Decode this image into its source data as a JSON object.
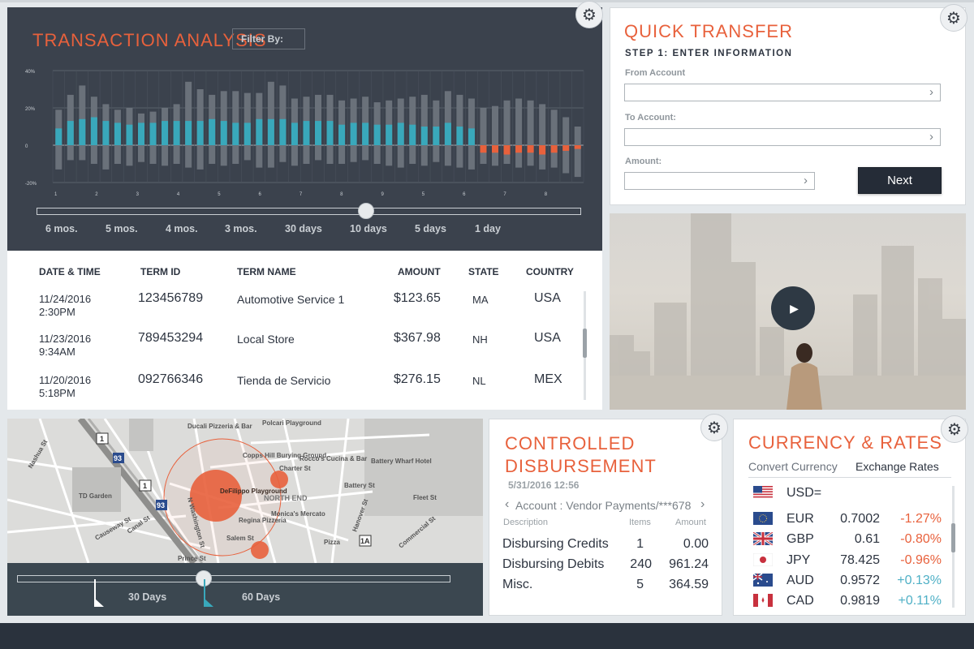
{
  "colors": {
    "accent": "#e8613c",
    "teal": "#39a8bb",
    "dark": "#3b424d",
    "negative": "#e8613c",
    "positive": "#4fb0c6"
  },
  "transaction_analysis": {
    "title": "TRANSACTION ANALYSIS",
    "filter_label": "Filter By:",
    "y_ticks": [
      "40%",
      "20%",
      "0",
      "-20%"
    ],
    "x_ticks": [
      "1",
      "2",
      "3",
      "4",
      "5",
      "6",
      "7",
      "8",
      "9",
      "5",
      "6",
      "7",
      "8"
    ],
    "range_labels": [
      "6 mos.",
      "5 mos.",
      "4 mos.",
      "3 mos.",
      "30 days",
      "10 days",
      "5 days",
      "1 day"
    ],
    "slider_position": 0.61,
    "chart_data": {
      "type": "bar",
      "ylim": [
        -20,
        40
      ],
      "values": [
        9,
        13,
        14,
        15,
        13,
        12,
        11,
        12,
        12,
        13,
        13,
        13,
        13,
        14,
        13,
        12,
        12,
        14,
        14,
        14,
        12,
        13,
        13,
        13,
        11,
        12,
        12,
        11,
        11,
        12,
        11,
        10,
        10,
        12,
        10,
        9,
        -4,
        -4,
        -5,
        -4,
        -4,
        -5,
        -4,
        -3,
        -2
      ],
      "ranges_high": [
        19,
        27,
        32,
        26,
        22,
        19,
        20,
        17,
        18,
        20,
        22,
        34,
        30,
        27,
        29,
        29,
        28,
        28,
        34,
        32,
        25,
        26,
        27,
        27,
        24,
        25,
        26,
        23,
        24,
        25,
        26,
        27,
        24,
        29,
        27,
        25,
        20,
        21,
        24,
        25,
        24,
        22,
        19,
        15,
        10
      ],
      "ranges_low": [
        -13,
        -8,
        -8,
        -10,
        -13,
        -10,
        -11,
        -9,
        -10,
        -11,
        -10,
        -12,
        -13,
        -10,
        -11,
        -10,
        -8,
        -12,
        -12,
        -9,
        -11,
        -10,
        -8,
        -10,
        -10,
        -9,
        -8,
        -10,
        -11,
        -12,
        -10,
        -11,
        -9,
        -11,
        -12,
        -13,
        -10,
        -11,
        -10,
        -12,
        -11,
        -13,
        -12,
        -15,
        -17
      ]
    }
  },
  "transactions": {
    "headers": [
      "DATE & TIME",
      "TERM ID",
      "TERM NAME",
      "AMOUNT",
      "STATE",
      "COUNTRY"
    ],
    "rows": [
      {
        "date": "11/24/2016",
        "time": "2:30PM",
        "term_id": "123456789",
        "term_name": "Automotive Service 1",
        "amount": "$123.65",
        "state": "MA",
        "country": "USA"
      },
      {
        "date": "11/23/2016",
        "time": "9:34AM",
        "term_id": "789453294",
        "term_name": "Local Store",
        "amount": "$367.98",
        "state": "NH",
        "country": "USA"
      },
      {
        "date": "11/20/2016",
        "time": "5:18PM",
        "term_id": "092766346",
        "term_name": "Tienda de Servicio",
        "amount": "$276.15",
        "state": "NL",
        "country": "MEX"
      }
    ]
  },
  "quick_transfer": {
    "title": "QUICK TRANSFER",
    "step": "STEP 1: ENTER INFORMATION",
    "from_label": "From Account",
    "to_label": "To Account:",
    "amount_label": "Amount:",
    "next_label": "Next"
  },
  "map": {
    "labels": [
      "TD Garden",
      "Ducali Pizzeria & Bar",
      "Copps Hill Burying Ground",
      "NORTH END",
      "Regina Pizzeria",
      "Monica's Mercato",
      "Rocco's Cucina & Bar",
      "Battery Wharf Hotel",
      "DeFilippo Playground",
      "Nashua St",
      "Causeway St",
      "Canal St",
      "Hanover St",
      "Commercial St",
      "Battery St",
      "Charter St",
      "Salem St",
      "Prince St",
      "N Washington St",
      "Pizza",
      "Fleet St",
      "Polcari Playground"
    ],
    "route_labels": [
      "1",
      "93",
      "1",
      "93",
      "1A"
    ],
    "slider_position": 0.42,
    "range_labels": [
      "30 Days",
      "60 Days"
    ]
  },
  "disbursement": {
    "title_line1": "CONTROLLED",
    "title_line2": "DISBURSEMENT",
    "date": "5/31/2016  12:56",
    "account": "Account : Vendor Payments/***678",
    "headers": {
      "description": "Description",
      "items": "Items",
      "amount": "Amount"
    },
    "rows": [
      {
        "description": "Disbursing Credits",
        "items": "1",
        "amount": "0.00"
      },
      {
        "description": "Disbursing Debits",
        "items": "240",
        "amount": "961.24"
      },
      {
        "description": "Misc.",
        "items": "5",
        "amount": "364.59"
      }
    ]
  },
  "currency": {
    "title": "CURRENCY & RATES",
    "tabs": [
      "Convert Currency",
      "Exchange Rates"
    ],
    "active_tab": "Exchange Rates",
    "base": "USD=",
    "rows": [
      {
        "code": "EUR",
        "rate": "0.7002",
        "change": "-1.27%",
        "dir": "neg",
        "flag": "eu-flag-icon"
      },
      {
        "code": "GBP",
        "rate": "0.61",
        "change": "-0.80%",
        "dir": "neg",
        "flag": "uk-flag-icon"
      },
      {
        "code": "JPY",
        "rate": "78.425",
        "change": "-0.96%",
        "dir": "neg",
        "flag": "japan-flag-icon"
      },
      {
        "code": "AUD",
        "rate": "0.9572",
        "change": "+0.13%",
        "dir": "pos",
        "flag": "australia-flag-icon"
      },
      {
        "code": "CAD",
        "rate": "0.9819",
        "change": "+0.11%",
        "dir": "pos",
        "flag": "canada-flag-icon"
      }
    ]
  }
}
